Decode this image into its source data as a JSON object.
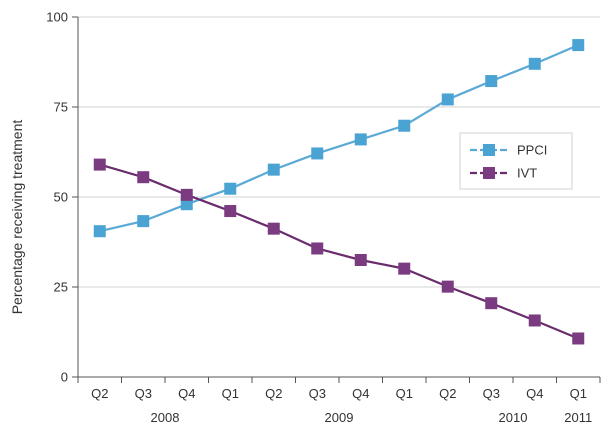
{
  "chart_data": {
    "type": "line",
    "title": "",
    "xlabel": "",
    "ylabel": "Percentage receiving treatment",
    "ylim": [
      0,
      100
    ],
    "yticks": [
      0,
      25,
      50,
      75,
      100
    ],
    "grid": true,
    "legend_position": "right",
    "categories": [
      "Q2",
      "Q3",
      "Q4",
      "Q1",
      "Q2",
      "Q3",
      "Q4",
      "Q1",
      "Q2",
      "Q3",
      "Q4",
      "Q1"
    ],
    "year_labels": [
      {
        "label": "2008",
        "category_index": 1.5
      },
      {
        "label": "2009",
        "category_index": 5.5
      },
      {
        "label": "2010",
        "category_index": 9.5
      },
      {
        "label": "2011",
        "category_index": 11
      }
    ],
    "series": [
      {
        "name": "PPCI",
        "color": "#5aa9d6",
        "marker_color": "#4aa3d3",
        "values": [
          40.5,
          43.3,
          48,
          52.3,
          57.6,
          62.1,
          66,
          69.8,
          77.1,
          82.2,
          87,
          92.2
        ]
      },
      {
        "name": "IVT",
        "color": "#6b2c6e",
        "marker_color": "#7b3b80",
        "values": [
          59,
          55.5,
          50.6,
          46.1,
          41.2,
          35.7,
          32.5,
          30.1,
          25.1,
          20.5,
          15.7,
          10.7
        ]
      }
    ]
  }
}
